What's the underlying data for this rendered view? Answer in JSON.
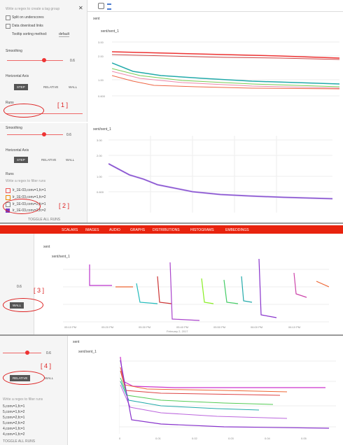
{
  "panels": [
    {
      "marker": "[ 1 ]",
      "regex_placeholder": "Write a regex to create a tag group",
      "options": [
        "Split on underscores",
        "Data download links"
      ],
      "tooltip_label": "Tooltip sorting method:",
      "tooltip_value": "default",
      "smoothing_label": "Smoothing",
      "smoothing_value": "0.6",
      "axis_label": "Horizontal Axis",
      "axis_buttons": [
        "STEP",
        "RELATIVE",
        "WALL"
      ],
      "runs_label": "Runs",
      "group": "xent",
      "card": "xent/xent_1",
      "yticks": [
        "3.00",
        "2.00",
        "1.00",
        "0.600"
      ]
    },
    {
      "marker": "[ 2 ]",
      "smoothing_label": "Smoothing",
      "smoothing_value": "0.6",
      "axis_label": "Horizontal Axis",
      "axis_buttons": [
        "STEP",
        "RELATIVE",
        "WALL"
      ],
      "runs_label": "Runs",
      "filter_placeholder": "Write a regex to filter runs",
      "runs": [
        "lr_1E-03,conv=1,fc=1",
        "lr_1E-03,conv=1,fc=2",
        "lr_1E-03,conv=2,fc=1",
        "lr_1E-03,conv=2,fc=2"
      ],
      "toggle": "TOGGLE ALL RUNS",
      "card": "xent/xent_1",
      "yticks": [
        "3.00",
        "2.00",
        "1.00",
        "0.600"
      ]
    },
    {
      "marker": "[ 3 ]",
      "tabs": [
        "SCALARS",
        "IMAGES",
        "AUDIO",
        "GRAPHS",
        "DISTRIBUTIONS",
        "HISTOGRAMS",
        "EMBEDDINGS"
      ],
      "smoothing_value": "0.6",
      "button": "WALL",
      "group": "xent",
      "card": "xent/xent_1",
      "xticks": [
        "05:10 PM",
        "05:20 PM",
        "05:30 PM",
        "05:40 PM",
        "05:50 PM",
        "06:00 PM",
        "06:10 PM"
      ],
      "date": "February 2, 2017"
    },
    {
      "marker": "[ 4 ]",
      "smoothing_value": "0.6",
      "axis_buttons": [
        "RELATIVE",
        "WALL"
      ],
      "filter_placeholder": "Write a regex to filter runs",
      "runs": [
        "5,conv=1,fc=1",
        "5,conv=1,fc=2",
        "5,conv=2,fc=1",
        "5,conv=2,fc=2",
        "4,conv=1,fc=1",
        "4,conv=1,fc=2"
      ],
      "toggle": "TOGGLE ALL RUNS",
      "group": "xent",
      "card": "xent/xent_1",
      "xticks": [
        "0",
        "0.01",
        "0.02",
        "0.03",
        "0.04",
        "0.05"
      ]
    }
  ]
}
